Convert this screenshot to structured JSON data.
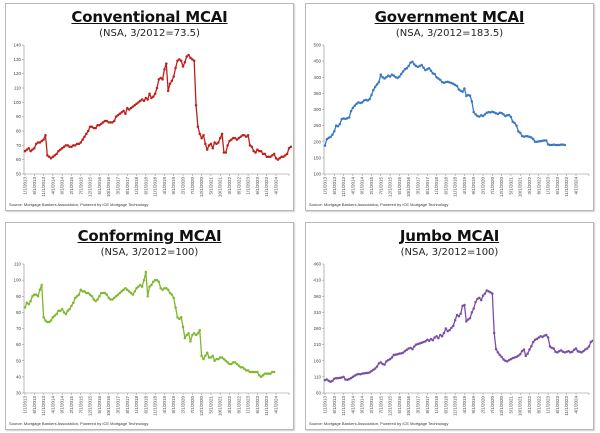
{
  "charts_common": {
    "source": "Source: Mortgage Bankers Association, Powered by ICE Mortgage Technology",
    "x_tick_labels": [
      "1/1/2013",
      "6/1/2013",
      "11/1/2013",
      "4/1/2014",
      "9/1/2014",
      "2/1/2015",
      "7/1/2015",
      "12/1/2015",
      "5/1/2016",
      "10/1/2016",
      "3/1/2017",
      "8/1/2017",
      "1/1/2018",
      "6/1/2018",
      "11/1/2018",
      "4/1/2019",
      "9/1/2019",
      "2/1/2020",
      "7/1/2020",
      "12/1/2020",
      "5/1/2021",
      "10/1/2021",
      "3/1/2022",
      "8/1/2022",
      "1/1/2023",
      "6/1/2023",
      "11/1/2023",
      "4/1/2024"
    ]
  },
  "chart_data": [
    {
      "type": "line",
      "title": "Conventional MCAI",
      "subtitle": "(NSA, 3/2012=73.5)",
      "color": "#c0201c",
      "xlabel": "",
      "ylabel": "",
      "ylim": [
        50,
        140
      ],
      "yticks": [
        50,
        60,
        70,
        80,
        90,
        100,
        110,
        120,
        130,
        140
      ],
      "x_start": "1/1/2013",
      "x_step_months": 1,
      "values": [
        66,
        67,
        68,
        66,
        67,
        68,
        71,
        72,
        72,
        73,
        74,
        77,
        63,
        62,
        61,
        62,
        63,
        64,
        66,
        67,
        68,
        69,
        70,
        70,
        69,
        69,
        70,
        70,
        71,
        71,
        72,
        74,
        76,
        78,
        80,
        83,
        83,
        82,
        82,
        84,
        84,
        85,
        86,
        87,
        87,
        86,
        86,
        86,
        87,
        90,
        91,
        92,
        93,
        94,
        92,
        96,
        95,
        96,
        97,
        98,
        99,
        100,
        101,
        102,
        101,
        103,
        102,
        106,
        103,
        104,
        106,
        110,
        116,
        117,
        116,
        123,
        127,
        108,
        113,
        115,
        118,
        124,
        129,
        130,
        129,
        125,
        128,
        132,
        133,
        131,
        130,
        129,
        98,
        83,
        78,
        75,
        77,
        71,
        67,
        70,
        71,
        68,
        72,
        71,
        72,
        75,
        78,
        65,
        65,
        70,
        73,
        74,
        75,
        75,
        74,
        75,
        76,
        77,
        77,
        76,
        77,
        70,
        69,
        66,
        65,
        67,
        66,
        66,
        64,
        64,
        62,
        62,
        62,
        63,
        64,
        61,
        60,
        61,
        62,
        62,
        63,
        64,
        68,
        69
      ]
    },
    {
      "type": "line",
      "title": "Government MCAI",
      "subtitle": "(NSA, 3/2012=183.5)",
      "color": "#3a78c2",
      "xlabel": "",
      "ylabel": "",
      "ylim": [
        100,
        500
      ],
      "yticks": [
        100,
        150,
        200,
        250,
        300,
        350,
        400,
        450,
        500
      ],
      "x_start": "1/1/2013",
      "x_step_months": 1,
      "values": [
        188,
        208,
        212,
        215,
        222,
        232,
        250,
        248,
        255,
        270,
        272,
        271,
        273,
        275,
        295,
        305,
        312,
        318,
        322,
        320,
        322,
        328,
        330,
        328,
        332,
        345,
        360,
        370,
        378,
        385,
        408,
        400,
        396,
        400,
        405,
        402,
        408,
        405,
        400,
        398,
        402,
        410,
        418,
        425,
        428,
        435,
        445,
        448,
        440,
        435,
        432,
        435,
        438,
        430,
        422,
        425,
        428,
        420,
        412,
        410,
        400,
        396,
        392,
        385,
        383,
        385,
        386,
        384,
        382,
        380,
        376,
        373,
        362,
        358,
        355,
        365,
        342,
        345,
        343,
        325,
        292,
        285,
        280,
        278,
        282,
        280,
        285,
        290,
        292,
        291,
        293,
        291,
        288,
        286,
        290,
        289,
        285,
        280,
        282,
        283,
        277,
        262,
        258,
        250,
        232,
        228,
        218,
        216,
        217,
        217,
        215,
        213,
        208,
        200,
        200,
        201,
        202,
        203,
        204,
        204,
        192,
        190,
        190,
        191,
        190,
        190,
        190,
        191,
        191,
        190
      ]
    },
    {
      "type": "line",
      "title": "Conforming MCAI",
      "subtitle": "(NSA, 3/2012=100)",
      "color": "#7fb82e",
      "xlabel": "",
      "ylabel": "",
      "ylim": [
        30,
        110
      ],
      "yticks": [
        30,
        40,
        50,
        60,
        70,
        80,
        90,
        100,
        110
      ],
      "x_start": "1/1/2013",
      "x_step_months": 1,
      "values": [
        83,
        86,
        85,
        87,
        90,
        91,
        91,
        90,
        94,
        97,
        77,
        75,
        74,
        74,
        75,
        77,
        78,
        79,
        81,
        81,
        82,
        80,
        79,
        81,
        82,
        84,
        86,
        89,
        90,
        91,
        94,
        93,
        93,
        92,
        92,
        91,
        90,
        88,
        87,
        88,
        90,
        92,
        92,
        92,
        91,
        89,
        88,
        88,
        89,
        90,
        91,
        92,
        93,
        94,
        95,
        94,
        93,
        92,
        91,
        93,
        95,
        96,
        97,
        96,
        100,
        105,
        90,
        96,
        97,
        99,
        100,
        100,
        99,
        95,
        94,
        95,
        95,
        94,
        92,
        91,
        89,
        83,
        77,
        76,
        77,
        71,
        64,
        66,
        67,
        62,
        66,
        67,
        66,
        67,
        69,
        53,
        51,
        53,
        55,
        52,
        52,
        53,
        50,
        51,
        51,
        52,
        52,
        51,
        50,
        49,
        48,
        48,
        49,
        49,
        48,
        47,
        46,
        46,
        45,
        44,
        44,
        43,
        43,
        43,
        43,
        43,
        41,
        40,
        41,
        42,
        42,
        42,
        42,
        43,
        43
      ]
    },
    {
      "type": "line",
      "title": "Jumbo MCAI",
      "subtitle": "(NSA, 3/2012=100)",
      "color": "#7a4fa8",
      "xlabel": "",
      "ylabel": "",
      "ylim": [
        60,
        460
      ],
      "yticks": [
        60,
        110,
        160,
        210,
        260,
        310,
        360,
        410,
        460
      ],
      "x_start": "1/1/2013",
      "x_step_months": 1,
      "values": [
        100,
        102,
        98,
        95,
        98,
        104,
        106,
        106,
        107,
        108,
        110,
        102,
        101,
        103,
        106,
        110,
        114,
        117,
        119,
        118,
        120,
        121,
        122,
        122,
        124,
        128,
        132,
        136,
        142,
        152,
        155,
        150,
        148,
        158,
        162,
        165,
        170,
        178,
        179,
        180,
        182,
        183,
        185,
        190,
        194,
        198,
        200,
        196,
        204,
        210,
        212,
        214,
        216,
        218,
        220,
        225,
        222,
        227,
        224,
        232,
        236,
        230,
        240,
        236,
        246,
        260,
        252,
        255,
        262,
        268,
        286,
        302,
        298,
        306,
        330,
        333,
        282,
        288,
        292,
        310,
        322,
        342,
        352,
        355,
        348,
        362,
        368,
        378,
        375,
        372,
        368,
        246,
        196,
        186,
        178,
        172,
        164,
        160,
        158,
        162,
        165,
        168,
        170,
        172,
        176,
        180,
        190,
        195,
        175,
        182,
        195,
        205,
        218,
        225,
        228,
        232,
        236,
        234,
        238,
        240,
        232,
        204,
        200,
        198,
        188,
        186,
        190,
        192,
        188,
        186,
        188,
        190,
        186,
        188,
        194,
        198,
        189,
        188,
        186,
        190,
        195,
        198,
        204,
        218,
        222
      ]
    }
  ]
}
